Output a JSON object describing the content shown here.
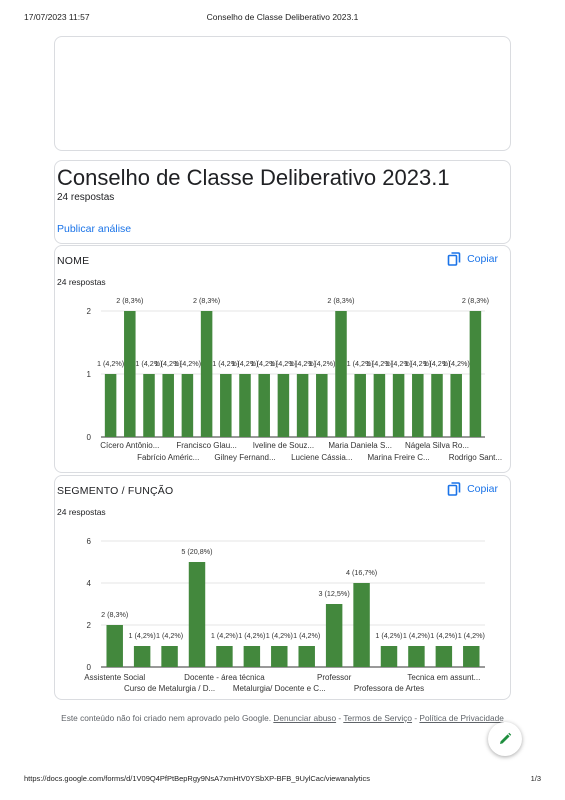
{
  "print_header": {
    "date": "17/07/2023 11:57",
    "title": "Conselho de Classe Deliberativo 2023.1"
  },
  "form": {
    "title": "Conselho de Classe Deliberativo 2023.1",
    "responses": "24 respostas",
    "publish_link": "Publicar análise"
  },
  "copy_label": "Copiar",
  "questions": [
    {
      "title": "NOME",
      "responses": "24 respostas",
      "chart_data": {
        "type": "bar",
        "ylim": [
          0,
          2
        ],
        "yticks": [
          0,
          1,
          2
        ],
        "color": "#43883d",
        "values": [
          1,
          2,
          1,
          1,
          1,
          2,
          1,
          1,
          1,
          1,
          1,
          1,
          2,
          1,
          1,
          1,
          1,
          1,
          1,
          2
        ],
        "data_labels": [
          "1 (4,2%)",
          "2 (8,3%)",
          "1 (4,2%)",
          "1 (4,2%)",
          "1 (4,2%)",
          "2 (8,3%)",
          "1 (4,2%)",
          "1 (4,2%)",
          "1 (4,2%)",
          "1 (4,2%)",
          "1 (4,2%)",
          "1 (4,2%)",
          "2 (8,3%)",
          "1 (4,2%)",
          "1 (4,2%)",
          "1 (4,2%)",
          "1 (4,2%)",
          "1 (4,2%)",
          "1 (4,2%)",
          "2 (8,3%)"
        ],
        "x_labels_row1": [
          {
            "index": 1,
            "text": "Cícero Antônio..."
          },
          {
            "index": 5,
            "text": "Francisco Glau..."
          },
          {
            "index": 9,
            "text": "Iveline de Souz..."
          },
          {
            "index": 13,
            "text": "Maria Daniela S..."
          },
          {
            "index": 17,
            "text": "Nágela Silva Ro..."
          }
        ],
        "x_labels_row2": [
          {
            "index": 3,
            "text": "Fabrício Améric..."
          },
          {
            "index": 7,
            "text": "Gilney Fernand..."
          },
          {
            "index": 11,
            "text": "Luciene Cássia..."
          },
          {
            "index": 15,
            "text": "Marina Freire C..."
          },
          {
            "index": 19,
            "text": "Rodrigo Sant..."
          }
        ]
      }
    },
    {
      "title": "SEGMENTO / FUNÇÃO",
      "responses": "24 respostas",
      "chart_data": {
        "type": "bar",
        "ylim": [
          0,
          6
        ],
        "yticks": [
          0,
          2,
          4,
          6
        ],
        "color": "#43883d",
        "values": [
          2,
          1,
          1,
          5,
          1,
          1,
          1,
          1,
          3,
          4,
          1,
          1,
          1,
          1
        ],
        "data_labels": [
          "2 (8,3%)",
          "1 (4,2%)",
          "1 (4,2%)",
          "5 (20,8%)",
          "1 (4,2%)",
          "1 (4,2%)",
          "1 (4,2%)",
          "1 (4,2%)",
          "3 (12,5%)",
          "4 (16,7%)",
          "1 (4,2%)",
          "1 (4,2%)",
          "1 (4,2%)",
          "1 (4,2%)"
        ],
        "x_labels_row1": [
          {
            "index": 0,
            "text": "Assistente Social"
          },
          {
            "index": 4,
            "text": "Docente - área técnica"
          },
          {
            "index": 8,
            "text": "Professor"
          },
          {
            "index": 12,
            "text": "Tecnica em assunt..."
          }
        ],
        "x_labels_row2": [
          {
            "index": 2,
            "text": "Curso de Metalurgia / D..."
          },
          {
            "index": 6,
            "text": "Metalurgia/ Docente e C..."
          },
          {
            "index": 10,
            "text": "Professora de Artes"
          }
        ]
      }
    }
  ],
  "disclaimer": {
    "text": "Este conteúdo não foi criado nem aprovado pelo Google.",
    "report_abuse": "Denunciar abuso",
    "terms": "Termos de Serviço",
    "privacy": "Política de Privacidade",
    "separator": "-"
  },
  "fab_icon": "pencil-icon",
  "print_footer": {
    "url": "https://docs.google.com/forms/d/1V09Q4PfPtBepRgy9NsA7xmHtV0YSbXP-BFB_9UylCac/viewanalytics",
    "page": "1/3"
  }
}
